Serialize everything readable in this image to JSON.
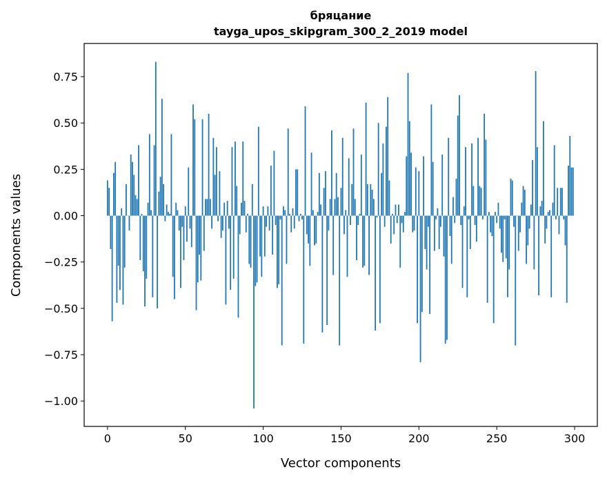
{
  "chart_data": {
    "type": "bar",
    "title": "бряцание",
    "subtitle": "tayga_upos_skipgram_300_2_2019 model",
    "xlabel": "Vector components",
    "ylabel": "Components values",
    "xlim": [
      -15,
      314.6
    ],
    "ylim": [
      -1.137,
      0.929
    ],
    "xticks": [
      0,
      50,
      100,
      150,
      200,
      250,
      300
    ],
    "xtick_labels": [
      "0",
      "50",
      "100",
      "150",
      "200",
      "250",
      "300"
    ],
    "yticks": [
      0.75,
      0.5,
      0.25,
      0.0,
      -0.25,
      -0.5,
      -0.75,
      -1.0
    ],
    "ytick_labels": [
      "0.75",
      "0.50",
      "0.25",
      "0.00",
      "−0.25",
      "−0.50",
      "−0.75",
      "−1.00"
    ],
    "grid": false,
    "bar_color": "#1f77b4",
    "values": [
      0.19,
      0.15,
      -0.18,
      -0.57,
      0.23,
      0.29,
      -0.47,
      -0.27,
      -0.4,
      0.04,
      -0.48,
      -0.28,
      0.17,
      0,
      -0.08,
      0.33,
      0.29,
      0.22,
      0.11,
      0.09,
      0.38,
      -0.24,
      0.01,
      -0.3,
      -0.49,
      -0.34,
      0.07,
      0.44,
      0.03,
      -0.44,
      0.38,
      0.83,
      -0.5,
      0.13,
      0.21,
      0.63,
      0.17,
      -0.03,
      0.06,
      0.02,
      0.01,
      0.44,
      -0.33,
      -0.45,
      0.07,
      0.03,
      -0.08,
      -0.39,
      -0.06,
      -0.24,
      0.05,
      -0.14,
      0.26,
      -0.07,
      -0.17,
      0.6,
      0.52,
      -0.51,
      -0.36,
      -0.21,
      -0.35,
      0.52,
      -0.19,
      0.09,
      0.09,
      0.55,
      0.09,
      -0.07,
      0.42,
      0.22,
      0.37,
      -0.03,
      0.24,
      -0.12,
      -0.08,
      0.07,
      -0.48,
      0.08,
      -0.07,
      -0.4,
      0.37,
      -0.34,
      0.4,
      0.16,
      -0.55,
      -0.1,
      0.07,
      0.4,
      0.08,
      -0.09,
      0.01,
      -0.26,
      -0.28,
      0.17,
      -1.04,
      -0.38,
      -0.36,
      0.48,
      -0.22,
      -0.33,
      0.05,
      -0.22,
      -0.06,
      0.05,
      -0.08,
      0.27,
      -0.21,
      0.35,
      -0.05,
      -0.39,
      -0.37,
      -0.02,
      -0.7,
      0.05,
      0.03,
      -0.26,
      0.47,
      0.01,
      -0.09,
      0.04,
      -0.07,
      0.25,
      0.25,
      -0.03,
      0.01,
      -0.02,
      -0.69,
      0.59,
      -0.1,
      -0.15,
      -0.27,
      0.34,
      0.03,
      -0.16,
      -0.15,
      0.02,
      0.23,
      0.06,
      -0.63,
      0.15,
      0.24,
      -0.59,
      -0.08,
      0.09,
      0.46,
      -0.32,
      0.09,
      0.23,
      0.1,
      -0.7,
      0.15,
      0.42,
      -0.1,
      0.03,
      -0.33,
      0.31,
      -0.05,
      0.17,
      0.47,
      0.09,
      -0.24,
      -0.05,
      0.01,
      0.33,
      -0.28,
      -0.27,
      0.61,
      0.17,
      -0.32,
      0.17,
      0.14,
      0.09,
      -0.62,
      -0.01,
      0.5,
      -0.58,
      0.23,
      0.39,
      -0.06,
      0.48,
      0.64,
      0.19,
      -0.15,
      0.01,
      -0.1,
      0.06,
      -0.04,
      0.06,
      -0.28,
      -0.04,
      -0.09,
      0.02,
      0.32,
      0.77,
      0.51,
      0.34,
      -0.09,
      -0.08,
      0.26,
      -0.58,
      0.24,
      -0.79,
      -0.52,
      0.32,
      -0.18,
      -0.29,
      -0.06,
      -0.53,
      0.6,
      0.29,
      -0.19,
      -0.02,
      0.04,
      -0.18,
      -0.06,
      0.33,
      -0.22,
      -0.69,
      -0.67,
      0.42,
      -0.11,
      -0.26,
      0.1,
      -0.04,
      0.2,
      0.54,
      0.65,
      -0.05,
      -0.39,
      0.05,
      0.37,
      -0.44,
      -0.02,
      -0.18,
      0.39,
      0.16,
      -0.05,
      -0.14,
      0.42,
      0.16,
      0.15,
      -0.02,
      0.55,
      0.41,
      -0.47,
      0.02,
      -0.09,
      -0.11,
      -0.58,
      0.02,
      -0.04,
      0.07,
      -0.07,
      -0.2,
      -0.25,
      -0.02,
      -0.23,
      -0.44,
      -0.29,
      0.2,
      0.19,
      -0.06,
      -0.7,
      0,
      -0.19,
      -0.09,
      0.07,
      0.16,
      0.14,
      -0.26,
      -0.16,
      -0.07,
      0.06,
      0.3,
      -0.29,
      0.78,
      0.37,
      -0.43,
      0.05,
      0.08,
      0.51,
      -0.15,
      -0.07,
      0.02,
      0.03,
      -0.44,
      0.07,
      0.38,
      -0.02,
      0.15,
      -0.1,
      0.15,
      0.15,
      -0.02,
      -0.16,
      -0.47,
      0.27,
      0.43,
      0.26,
      0.26
    ]
  }
}
